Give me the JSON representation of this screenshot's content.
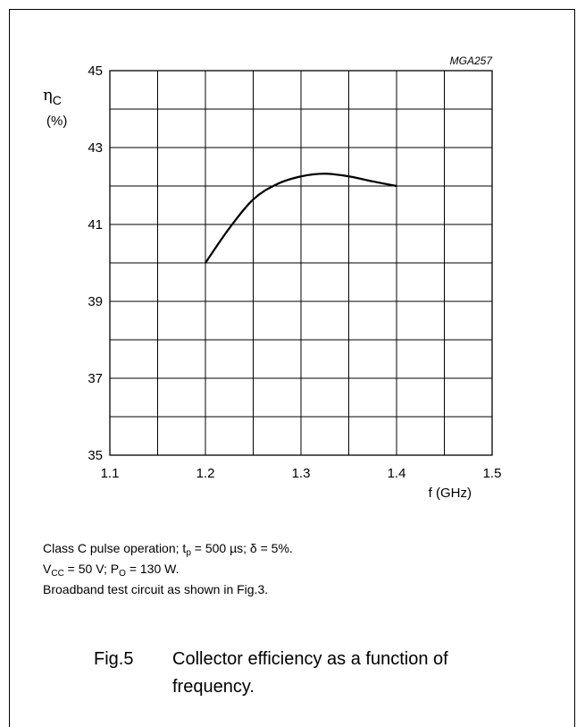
{
  "figure_code": "MGA257",
  "notes": {
    "line1": {
      "prefix": "Class C pulse operation; t",
      "sub1": "p",
      "mid": " = 500 µs; δ = 5%."
    },
    "line2": {
      "v": "V",
      "sub_v": "CC",
      "mid": " = 50 V; P",
      "sub_p": "O",
      "end": " = 130 W."
    },
    "line3": "Broadband test circuit as shown in Fig.3."
  },
  "caption": {
    "fig": "Fig.5",
    "text": "Collector efficiency as a function of frequency."
  },
  "chart_data": {
    "type": "line",
    "title": "",
    "xlabel": "f (GHz)",
    "ylabel_symbol": "η",
    "ylabel_sub": "C",
    "ylabel_unit": "(%)",
    "xlim": [
      1.1,
      1.5
    ],
    "ylim": [
      35,
      45
    ],
    "x_ticks": [
      "1.1",
      "1.2",
      "1.3",
      "1.4",
      "1.5"
    ],
    "y_ticks": [
      "35",
      "37",
      "39",
      "41",
      "43",
      "45"
    ],
    "x_grid_step": 0.05,
    "y_grid_step": 1,
    "grid": true,
    "series": [
      {
        "color": "#000000",
        "x": [
          1.2,
          1.225,
          1.25,
          1.275,
          1.3,
          1.325,
          1.35,
          1.375,
          1.4
        ],
        "y": [
          40.0,
          40.9,
          41.65,
          42.05,
          42.25,
          42.32,
          42.25,
          42.12,
          42.0
        ]
      }
    ]
  }
}
